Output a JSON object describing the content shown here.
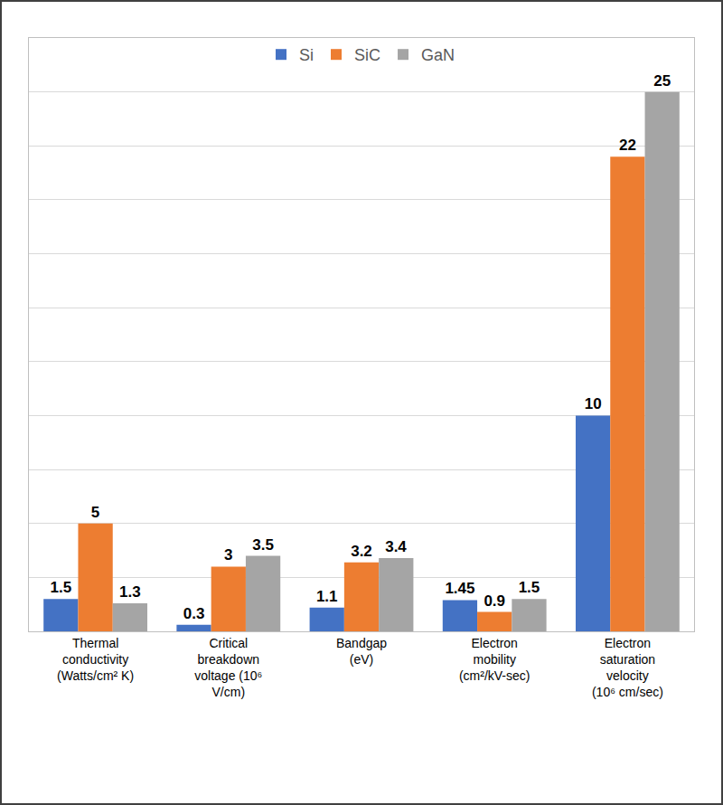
{
  "chart_data": {
    "type": "bar",
    "categories": [
      "Thermal\nconductivity\n(Watts/cm² K)",
      "Critical\nbreakdown\nvoltage (10⁶\nV/cm)",
      "Bandgap\n(eV)",
      "Electron\nmobility\n(cm²/kV-sec)",
      "Electron\nsaturation\nvelocity\n(10⁶ cm/sec)"
    ],
    "series": [
      {
        "name": "Si",
        "color": "#4472c4",
        "values": [
          1.5,
          0.3,
          1.1,
          1.45,
          10
        ]
      },
      {
        "name": "SiC",
        "color": "#ed7d31",
        "values": [
          5,
          3,
          3.2,
          0.9,
          22
        ]
      },
      {
        "name": "GaN",
        "color": "#a5a5a5",
        "values": [
          1.3,
          3.5,
          3.4,
          1.5,
          25
        ]
      }
    ],
    "ylim": [
      0,
      27.5
    ],
    "yticks": [
      0,
      2.5,
      5,
      7.5,
      10,
      12.5,
      15,
      17.5,
      20,
      22.5,
      25,
      27.5
    ],
    "grid": true,
    "tick_labels": "x",
    "legend": "top",
    "data_labels": true
  }
}
